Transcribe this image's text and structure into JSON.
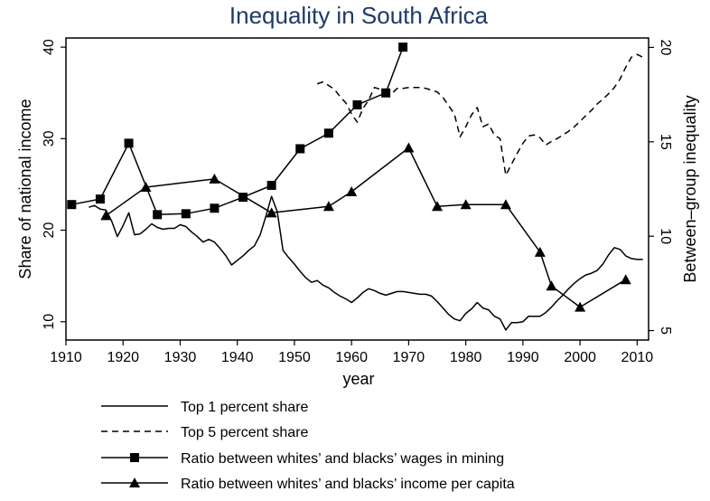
{
  "chart_data": {
    "type": "line",
    "title": "Inequality in South Africa",
    "title_color": "#1f3a68",
    "xlabel": "year",
    "ylabel_left": "Share of national income",
    "ylabel_right": "Between–group inequality",
    "xlim": [
      1910,
      2012
    ],
    "ylim_left": [
      8,
      41
    ],
    "ylim_right": [
      4.5,
      20.5
    ],
    "xticks": [
      1910,
      1920,
      1930,
      1940,
      1950,
      1960,
      1970,
      1980,
      1990,
      2000,
      2010
    ],
    "yticks_left": [
      10,
      20,
      30,
      40
    ],
    "yticks_right": [
      5,
      10,
      15,
      20
    ],
    "grid": false,
    "legend_position": "bottom",
    "series": [
      {
        "name": "Top 1 percent share",
        "axis": "left",
        "style": "solid",
        "marker": "none",
        "x": [
          1914,
          1915,
          1916,
          1917,
          1918,
          1919,
          1920,
          1921,
          1922,
          1923,
          1924,
          1925,
          1926,
          1927,
          1928,
          1929,
          1930,
          1931,
          1932,
          1933,
          1934,
          1935,
          1936,
          1937,
          1938,
          1939,
          1940,
          1941,
          1942,
          1943,
          1944,
          1945,
          1946,
          1947,
          1948,
          1949,
          1950,
          1951,
          1952,
          1953,
          1954,
          1955,
          1956,
          1957,
          1958,
          1959,
          1960,
          1961,
          1962,
          1963,
          1964,
          1965,
          1966,
          1967,
          1968,
          1969,
          1970,
          1971,
          1972,
          1973,
          1974,
          1975,
          1976,
          1977,
          1978,
          1979,
          1980,
          1981,
          1982,
          1983,
          1984,
          1985,
          1986,
          1987,
          1988,
          1989,
          1990,
          1991,
          1992,
          1993,
          1994,
          1995,
          1996,
          1997,
          1998,
          1999,
          2000,
          2001,
          2002,
          2003,
          2004,
          2005,
          2006,
          2007,
          2008,
          2009,
          2010,
          2011
        ],
        "y": [
          22.5,
          22.7,
          22.3,
          22.2,
          21.0,
          19.3,
          20.5,
          21.9,
          19.5,
          19.6,
          20.1,
          20.7,
          20.3,
          20.1,
          20.2,
          20.2,
          20.6,
          20.4,
          19.8,
          19.3,
          18.7,
          19.0,
          18.7,
          18.0,
          17.2,
          16.2,
          16.7,
          17.2,
          17.8,
          18.3,
          19.5,
          21.5,
          23.7,
          22.0,
          17.8,
          17.0,
          16.3,
          15.5,
          14.8,
          14.3,
          14.5,
          14.0,
          13.7,
          13.2,
          12.8,
          12.5,
          12.1,
          12.6,
          13.2,
          13.6,
          13.4,
          13.1,
          12.9,
          13.1,
          13.3,
          13.3,
          13.2,
          13.1,
          13.0,
          13.0,
          12.8,
          12.2,
          11.5,
          10.8,
          10.3,
          10.1,
          10.9,
          11.4,
          12.1,
          11.5,
          11.3,
          10.6,
          10.3,
          9.1,
          9.9,
          9.9,
          10.0,
          10.6,
          10.6,
          10.6,
          11.0,
          11.6,
          12.3,
          12.9,
          13.6,
          14.2,
          14.7,
          15.1,
          15.3,
          15.6,
          16.3,
          17.3,
          18.1,
          17.9,
          17.2,
          16.9,
          16.8,
          16.8
        ]
      },
      {
        "name": "Top 5 percent share",
        "axis": "left",
        "style": "dashed",
        "marker": "none",
        "x": [
          1954,
          1955,
          1956,
          1957,
          1958,
          1959,
          1960,
          1961,
          1962,
          1963,
          1964,
          1965,
          1966,
          1967,
          1968,
          1969,
          1970,
          1971,
          1972,
          1973,
          1974,
          1975,
          1976,
          1977,
          1978,
          1979,
          1980,
          1981,
          1982,
          1983,
          1984,
          1985,
          1986,
          1987,
          1988,
          1989,
          1990,
          1991,
          1992,
          1993,
          1994,
          1995,
          1996,
          1997,
          1998,
          1999,
          2000,
          2001,
          2002,
          2003,
          2004,
          2005,
          2006,
          2007,
          2008,
          2009,
          2010,
          2011
        ],
        "y": [
          36.0,
          36.2,
          35.8,
          35.4,
          34.6,
          33.9,
          32.7,
          31.8,
          33.3,
          34.2,
          35.6,
          35.4,
          35.2,
          34.9,
          35.5,
          35.5,
          35.6,
          35.6,
          35.6,
          35.5,
          35.3,
          35.1,
          34.5,
          33.6,
          32.7,
          30.2,
          31.3,
          32.6,
          33.4,
          31.3,
          31.6,
          30.4,
          30.0,
          26.0,
          27.2,
          28.4,
          29.5,
          30.3,
          30.4,
          30.1,
          29.3,
          29.7,
          30.0,
          30.4,
          30.8,
          31.3,
          31.9,
          32.5,
          33.1,
          33.8,
          34.3,
          34.9,
          35.6,
          36.5,
          37.8,
          38.9,
          39.2,
          38.9
        ]
      },
      {
        "name": "Ratio between whites’ and blacks’ wages in mining",
        "axis": "left",
        "style": "solid",
        "marker": "square",
        "x": [
          1911,
          1916,
          1921,
          1926,
          1931,
          1936,
          1941,
          1946,
          1951,
          1956,
          1961,
          1966,
          1969
        ],
        "y": [
          22.8,
          23.4,
          29.5,
          21.7,
          21.8,
          22.4,
          23.6,
          24.9,
          28.9,
          30.6,
          33.7,
          35.0,
          40.0
        ]
      },
      {
        "name": "Ratio between whites’ and blacks’ income per capita",
        "axis": "left",
        "style": "solid",
        "marker": "triangle",
        "x": [
          1917,
          1924,
          1936,
          1946,
          1956,
          1960,
          1970,
          1975,
          1980,
          1987,
          1993,
          1995,
          2000,
          2008
        ],
        "y": [
          21.6,
          24.7,
          25.6,
          21.9,
          22.6,
          24.2,
          29.0,
          22.6,
          22.8,
          22.8,
          17.6,
          13.9,
          11.6,
          14.6
        ]
      }
    ]
  }
}
